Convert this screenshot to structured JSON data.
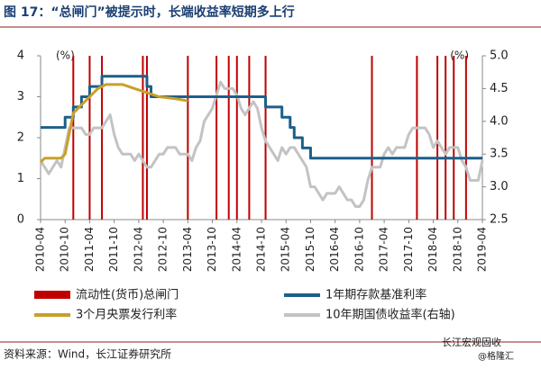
{
  "chart_data": {
    "type": "line",
    "title": "图 17：“总闸门”被提示时，长端收益率短期多上行",
    "y_unit": "(%)",
    "y2_unit": "(%)",
    "source": "资料来源：Wind，长江证券研究所",
    "watermark": [
      "长江宏观固收",
      "@格隆汇"
    ],
    "xlim": [
      "2010-04",
      "2019-04"
    ],
    "xticks": [
      "2010-04",
      "2010-10",
      "2011-04",
      "2011-10",
      "2012-04",
      "2012-10",
      "2013-04",
      "2013-10",
      "2014-04",
      "2014-10",
      "2015-04",
      "2015-10",
      "2016-04",
      "2016-10",
      "2017-04",
      "2017-10",
      "2018-04",
      "2018-10",
      "2019-04"
    ],
    "ylim": [
      0,
      4
    ],
    "yticks": [
      0,
      1,
      2,
      3,
      4
    ],
    "y2lim": [
      2.5,
      5.0
    ],
    "y2ticks": [
      2.5,
      {
        "value": 3.0,
        "label": "3.0"
      },
      3.5,
      {
        "value": 4.0,
        "label": "4.0"
      },
      4.5,
      {
        "value": 5.0,
        "label": "5.0"
      }
    ],
    "events": {
      "name": "流动性(货币)总闸门",
      "color": "#c00000",
      "x": [
        "2010-12",
        "2011-04",
        "2011-07",
        "2012-05",
        "2012-06",
        "2013-04",
        "2013-11",
        "2014-02",
        "2014-04",
        "2014-07",
        "2014-11",
        "2017-01",
        "2017-12",
        "2018-05",
        "2018-07",
        "2018-09",
        "2018-12"
      ]
    },
    "series": [
      {
        "name": "1年期存款基准利率",
        "color": "#1d5f8a",
        "step": true,
        "x": [
          "2010-04",
          "2010-10",
          "2010-12",
          "2011-02",
          "2011-04",
          "2011-07",
          "2012-06",
          "2012-07",
          "2014-11",
          "2015-03",
          "2015-05",
          "2015-06",
          "2015-08",
          "2015-10",
          "2019-04"
        ],
        "values": [
          2.25,
          2.5,
          2.75,
          3.0,
          3.25,
          3.5,
          3.25,
          3.0,
          2.75,
          2.5,
          2.25,
          2.0,
          1.75,
          1.5,
          1.5
        ]
      },
      {
        "name": "3个月央票发行利率",
        "color": "#c8a02a",
        "x": [
          "2010-04",
          "2010-05",
          "2010-09",
          "2010-10",
          "2010-12",
          "2011-02",
          "2011-04",
          "2011-06",
          "2011-08",
          "2011-10",
          "2011-12",
          "2012-03",
          "2012-06",
          "2012-09",
          "2013-01",
          "2013-04"
        ],
        "values": [
          1.4,
          1.5,
          1.5,
          1.6,
          2.6,
          2.8,
          3.0,
          3.2,
          3.3,
          3.3,
          3.3,
          3.2,
          3.1,
          3.0,
          2.95,
          2.9
        ]
      },
      {
        "name": "10年期国债收益率(右轴)",
        "color": "#c3c3c3",
        "axis": "y2",
        "x": [
          "2010-04",
          "2010-05",
          "2010-06",
          "2010-07",
          "2010-08",
          "2010-09",
          "2010-10",
          "2010-11",
          "2010-12",
          "2011-01",
          "2011-02",
          "2011-03",
          "2011-04",
          "2011-05",
          "2011-06",
          "2011-07",
          "2011-08",
          "2011-09",
          "2011-10",
          "2011-11",
          "2011-12",
          "2012-01",
          "2012-02",
          "2012-03",
          "2012-04",
          "2012-05",
          "2012-06",
          "2012-07",
          "2012-08",
          "2012-09",
          "2012-10",
          "2012-11",
          "2012-12",
          "2013-01",
          "2013-02",
          "2013-03",
          "2013-04",
          "2013-05",
          "2013-06",
          "2013-07",
          "2013-08",
          "2013-09",
          "2013-10",
          "2013-11",
          "2013-12",
          "2014-01",
          "2014-02",
          "2014-03",
          "2014-04",
          "2014-05",
          "2014-06",
          "2014-07",
          "2014-08",
          "2014-09",
          "2014-10",
          "2014-11",
          "2014-12",
          "2015-01",
          "2015-02",
          "2015-03",
          "2015-04",
          "2015-05",
          "2015-06",
          "2015-07",
          "2015-08",
          "2015-09",
          "2015-10",
          "2015-11",
          "2015-12",
          "2016-01",
          "2016-02",
          "2016-03",
          "2016-04",
          "2016-05",
          "2016-06",
          "2016-07",
          "2016-08",
          "2016-09",
          "2016-10",
          "2016-11",
          "2016-12",
          "2017-01",
          "2017-02",
          "2017-03",
          "2017-04",
          "2017-05",
          "2017-06",
          "2017-07",
          "2017-08",
          "2017-09",
          "2017-10",
          "2017-11",
          "2017-12",
          "2018-01",
          "2018-02",
          "2018-03",
          "2018-04",
          "2018-05",
          "2018-06",
          "2018-07",
          "2018-08",
          "2018-09",
          "2018-10",
          "2018-11",
          "2018-12",
          "2019-01",
          "2019-02",
          "2019-03",
          "2019-04"
        ],
        "values": [
          3.4,
          3.3,
          3.2,
          3.3,
          3.4,
          3.3,
          3.6,
          3.9,
          3.9,
          3.9,
          3.9,
          3.8,
          3.8,
          3.9,
          3.9,
          3.9,
          4.0,
          4.1,
          3.8,
          3.6,
          3.5,
          3.5,
          3.5,
          3.4,
          3.5,
          3.4,
          3.3,
          3.3,
          3.4,
          3.5,
          3.5,
          3.6,
          3.6,
          3.6,
          3.5,
          3.5,
          3.5,
          3.4,
          3.6,
          3.7,
          4.0,
          4.1,
          4.2,
          4.4,
          4.6,
          4.5,
          4.5,
          4.5,
          4.4,
          4.2,
          4.1,
          4.2,
          4.3,
          4.2,
          3.9,
          3.7,
          3.6,
          3.5,
          3.4,
          3.6,
          3.5,
          3.6,
          3.6,
          3.5,
          3.4,
          3.3,
          3.0,
          3.0,
          2.9,
          2.8,
          2.9,
          2.9,
          2.9,
          3.0,
          2.9,
          2.8,
          2.8,
          2.7,
          2.7,
          2.8,
          3.1,
          3.3,
          3.3,
          3.3,
          3.5,
          3.6,
          3.5,
          3.6,
          3.6,
          3.6,
          3.8,
          3.9,
          3.9,
          3.9,
          3.9,
          3.8,
          3.6,
          3.7,
          3.6,
          3.5,
          3.6,
          3.6,
          3.6,
          3.4,
          3.3,
          3.1,
          3.1,
          3.1,
          3.4
        ]
      }
    ]
  }
}
